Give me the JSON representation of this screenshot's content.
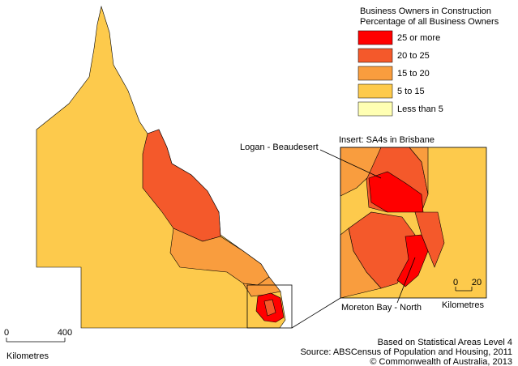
{
  "legend": {
    "title": [
      "Business Owners in Construction",
      "Percentage of all Business Owners"
    ],
    "items": [
      {
        "label": "25 or more",
        "color": "#ff0000"
      },
      {
        "label": "20 to 25",
        "color": "#f4592b"
      },
      {
        "label": "15 to 20",
        "color": "#f99d3e"
      },
      {
        "label": "5 to 15",
        "color": "#fdca4c"
      },
      {
        "label": "Less than 5",
        "color": "#ffffb3"
      }
    ]
  },
  "insert": {
    "title": "Insert: SA4s in Brisbane",
    "labels": [
      "Logan - Beaudesert",
      "Moreton Bay - North"
    ],
    "scale": {
      "ticks": [
        0,
        20
      ],
      "unit": "Kilometres"
    }
  },
  "scale": {
    "ticks": [
      0,
      400
    ],
    "unit": "Kilometres"
  },
  "notes": [
    "Based on Statistical Areas Level 4",
    "Source: ABSCensus of Population and Housing, 2011",
    "© Commonwealth of Australia, 2013"
  ]
}
